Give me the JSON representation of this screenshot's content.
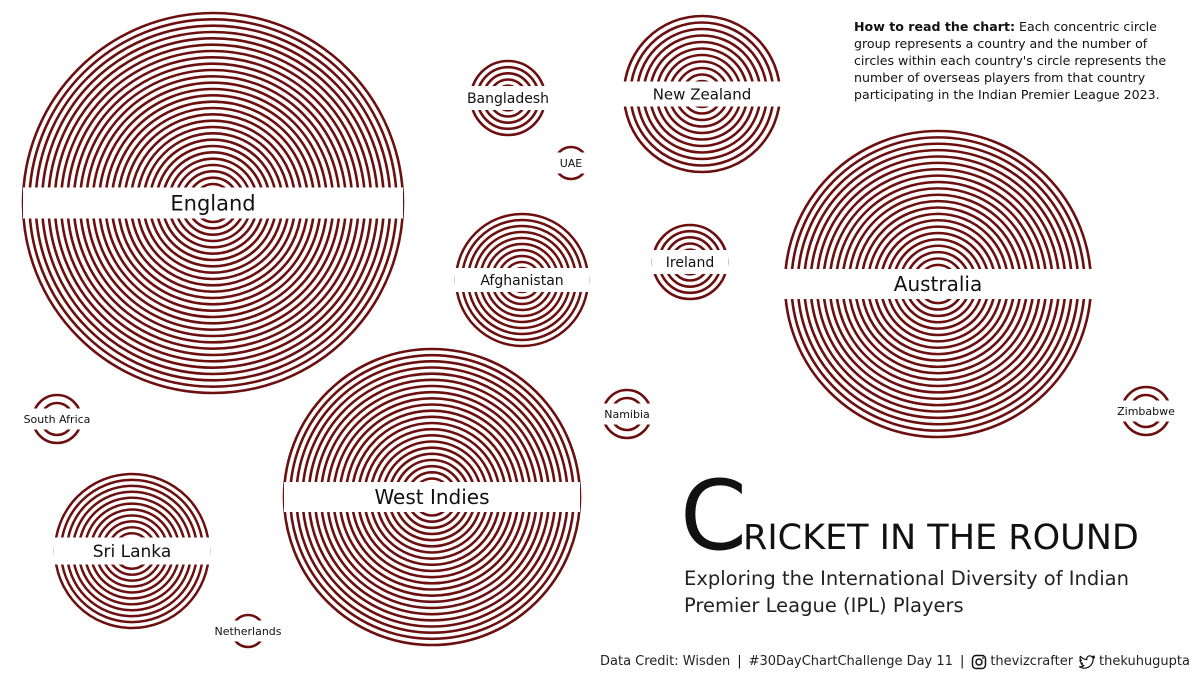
{
  "note": {
    "lead": "How to read the chart:",
    "text": "Each concentric circle group represents a country and the number of circles within each country's circle represents the number of overseas players from that country participating in the Indian Premier League 2023."
  },
  "title": {
    "initial": "C",
    "rest": "RICKET IN THE ROUND"
  },
  "subtitle": "Exploring the International Diversity of Indian Premier League (IPL) Players",
  "credits": {
    "data_credit": "Data Credit: Wisden",
    "challenge": "#30DayChartChallenge Day 11",
    "instagram": "thevizcrafter",
    "twitter": "thekuhugupta",
    "instagram_icon": "instagram-icon",
    "twitter_icon": "twitter-icon"
  },
  "colors": {
    "ring": "#6b0f0f",
    "background": "#ffffff",
    "text": "#111111"
  },
  "chart_data": {
    "type": "concentric-circles",
    "series": [
      {
        "name": "England",
        "values": [
          30
        ]
      },
      {
        "name": "West Indies",
        "values": [
          24
        ]
      },
      {
        "name": "Australia",
        "values": [
          24
        ]
      },
      {
        "name": "New Zealand",
        "values": [
          12
        ]
      },
      {
        "name": "Afghanistan",
        "values": [
          11
        ]
      },
      {
        "name": "Sri Lanka",
        "values": [
          13
        ]
      },
      {
        "name": "Bangladesh",
        "values": [
          6
        ]
      },
      {
        "name": "Ireland",
        "values": [
          6
        ]
      },
      {
        "name": "South Africa",
        "values": [
          3
        ]
      },
      {
        "name": "Namibia",
        "values": [
          3
        ]
      },
      {
        "name": "Zimbabwe",
        "values": [
          3
        ]
      },
      {
        "name": "UAE",
        "values": [
          2
        ]
      },
      {
        "name": "Netherlands",
        "values": [
          2
        ]
      }
    ]
  }
}
